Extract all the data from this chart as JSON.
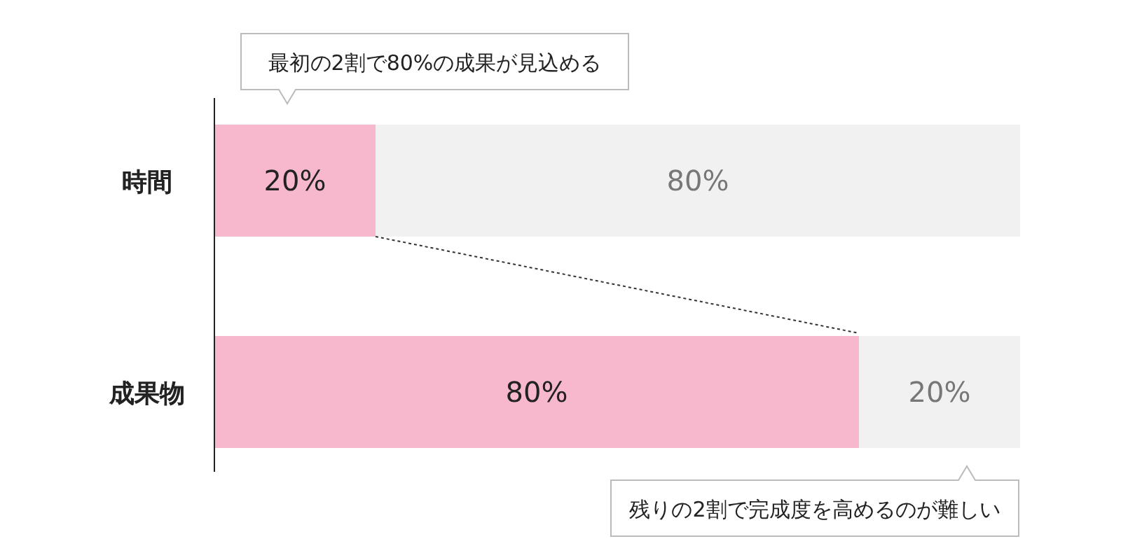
{
  "chart_data": {
    "type": "bar",
    "orientation": "horizontal",
    "stacked": true,
    "categories": [
      "時間",
      "成果物"
    ],
    "series": [
      {
        "color": "#f7b8cd",
        "values": [
          20,
          80
        ],
        "value_labels": [
          "20%",
          "80%"
        ]
      },
      {
        "color": "#f1f1f1",
        "values": [
          80,
          20
        ],
        "value_labels": [
          "80%",
          "20%"
        ]
      }
    ],
    "annotations": [
      "最初の2割で80%の成果が見込める",
      "残りの2割で完成度を高めるのが難しい"
    ]
  }
}
